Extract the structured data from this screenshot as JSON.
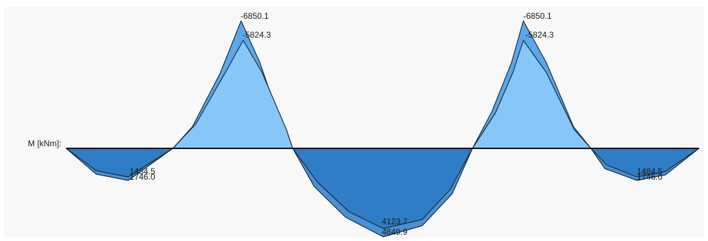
{
  "diagram": {
    "axis_label": "M [kNm]:",
    "colors": {
      "background": "#f8f8f8",
      "negative_fill": "#87c6f8",
      "positive_fill": "#2f7dc6",
      "envelope_fill": "#4a90d4",
      "outline": "#1c2a38",
      "baseline": "#111111"
    },
    "annotations": {
      "peak1_max": "-6850.1",
      "peak1_min": "-5824.3",
      "peak2_max": "-6850.1",
      "peak2_min": "-5824.3",
      "span1_min": "1484.5",
      "span1_max": "1746.0",
      "span2_min": "4123.7",
      "span2_max": "4849.9",
      "span3_min": "1484.5",
      "span3_max": "1746.0"
    }
  }
}
